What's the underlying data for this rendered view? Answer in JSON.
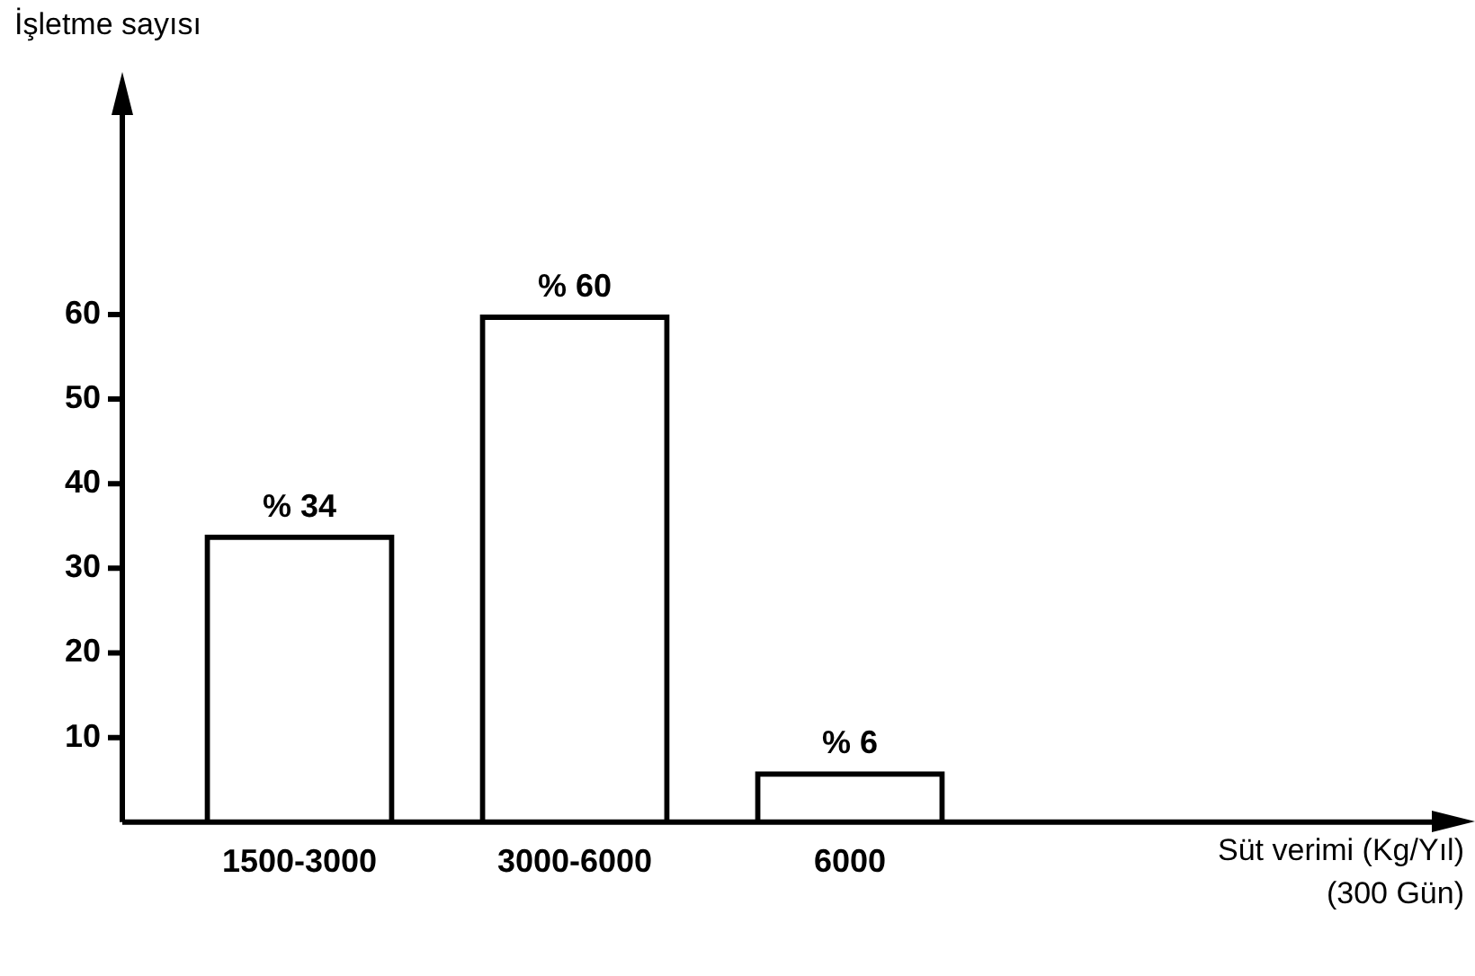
{
  "chart_data": {
    "type": "bar",
    "ylabel": "İşletme sayısı",
    "annotations": [
      "Süt verimi (Kg/Yıl)\n(300 Gün)"
    ],
    "categories": [
      "1500-3000",
      "3000-6000",
      "6000"
    ],
    "values": [
      34,
      60,
      6
    ],
    "value_labels": [
      "% 34",
      "% 60",
      "% 6"
    ],
    "color": "#000000",
    "ylim": [
      0,
      84
    ],
    "yticks": [
      10,
      20,
      30,
      40,
      50,
      60
    ],
    "grid": false,
    "legend": false
  }
}
